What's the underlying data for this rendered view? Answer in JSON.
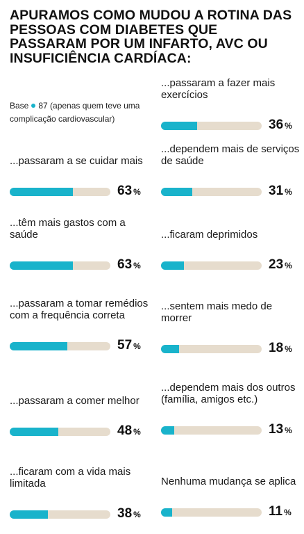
{
  "title": "APURAMOS COMO MUDOU A ROTINA DAS PESSOAS COM DIABETES QUE PASSARAM POR UM INFARTO, AVC OU INSUFICIÊNCIA CARDÍACA:",
  "base": {
    "label": "Base",
    "text": "87 (apenas quem teve uma complicação cardiovascular)"
  },
  "colors": {
    "fill": "#19b3cb",
    "track": "#e6dccd"
  },
  "chart_data": {
    "type": "bar",
    "title": "APURAMOS COMO MUDOU A ROTINA DAS PESSOAS COM DIABETES QUE PASSARAM POR UM INFARTO, AVC OU INSUFICIÊNCIA CARDÍACA:",
    "unit": "%",
    "ylim": [
      0,
      100
    ],
    "items": [
      {
        "label": "...passaram a se cuidar mais",
        "value": 63
      },
      {
        "label": "...têm mais gastos com a saúde",
        "value": 63
      },
      {
        "label": "...passaram a tomar remédios com a frequência correta",
        "value": 57
      },
      {
        "label": "...passaram a comer melhor",
        "value": 48
      },
      {
        "label": "...ficaram com a vida mais limitada",
        "value": 38
      },
      {
        "label": "...passaram a fazer mais exercícios",
        "value": 36
      },
      {
        "label": "...dependem mais de serviços de saúde",
        "value": 31
      },
      {
        "label": "...ficaram deprimidos",
        "value": 23
      },
      {
        "label": "...sentem mais medo de morrer",
        "value": 18
      },
      {
        "label": "...dependem mais dos outros (família, amigos etc.)",
        "value": 13
      },
      {
        "label": "Nenhuma mudança se aplica",
        "value": 11
      }
    ]
  }
}
